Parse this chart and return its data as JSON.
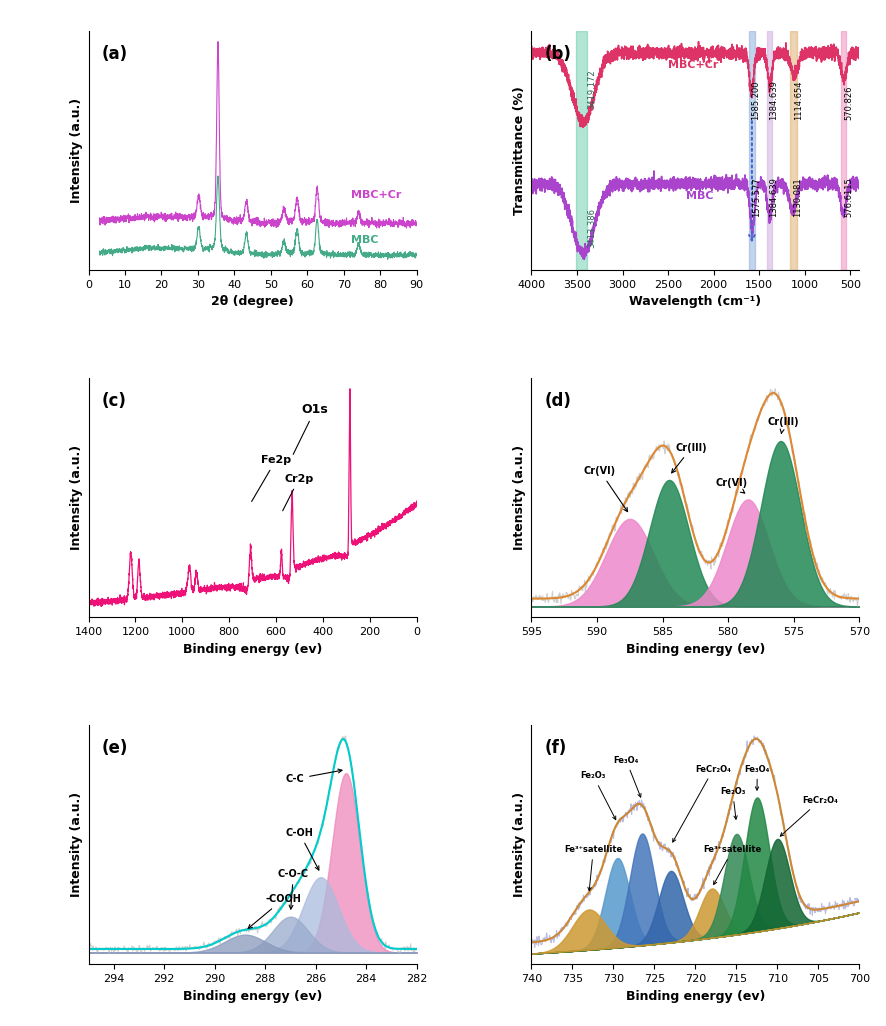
{
  "fig_width": 8.86,
  "fig_height": 10.26,
  "panel_a": {
    "label": "(a)",
    "xlabel": "2θ (degree)",
    "ylabel": "Intensity (a.u.)",
    "xlim": [
      0,
      90
    ],
    "mbc_cr_color": "#cc44cc",
    "mbc_color": "#44aa88",
    "mbc_cr_label": "MBC+Cr",
    "mbc_label": "MBC"
  },
  "panel_b": {
    "label": "(b)",
    "xlabel": "Wavelength (cm⁻¹)",
    "ylabel": "Transmittance (%)",
    "xlim": [
      4000,
      400
    ],
    "mbc_cr_color": "#dd3366",
    "mbc_color": "#aa44cc",
    "mbc_cr_label": "MBC+Cr",
    "mbc_label": "MBC",
    "band_colors": [
      "#66ccaa",
      "#88aadd",
      "#ccaadd",
      "#ddaa66",
      "#ee88bb"
    ],
    "band_positions": [
      3450,
      1580,
      1384,
      1120,
      573
    ],
    "band_widths": [
      120,
      60,
      60,
      80,
      60
    ]
  },
  "panel_c": {
    "label": "(c)",
    "xlabel": "Binding energy (ev)",
    "ylabel": "Intensity (a.u.)",
    "xlim": [
      1400,
      0
    ],
    "color": "#ee1177"
  },
  "panel_d": {
    "label": "(d)",
    "xlabel": "Binding energy (ev)",
    "ylabel": "Intensity (a.u.)",
    "xlim": [
      595,
      570
    ],
    "envelope_color": "#dd8833"
  },
  "panel_e": {
    "label": "(e)",
    "xlabel": "Binding energy (ev)",
    "ylabel": "Intensity (a.u.)",
    "xlim": [
      295,
      282
    ],
    "envelope_color": "#00cccc"
  },
  "panel_f": {
    "label": "(f)",
    "xlabel": "Binding energy (ev)",
    "ylabel": "Intensity (a.u.)",
    "xlim": [
      740,
      700
    ],
    "envelope_color": "#cc8833"
  }
}
